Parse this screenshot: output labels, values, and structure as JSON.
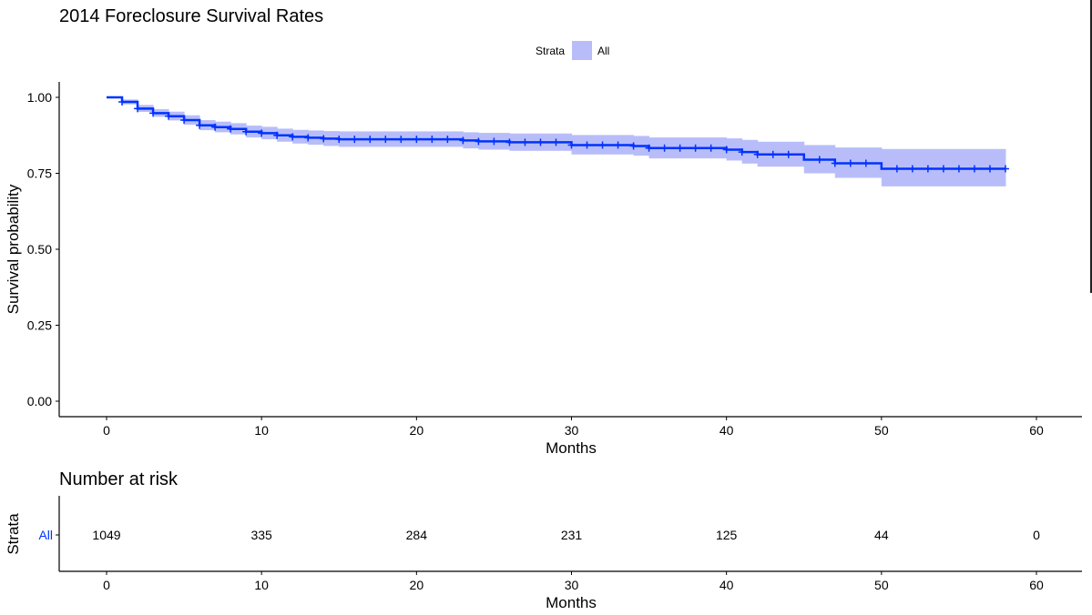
{
  "chart_data": [
    {
      "type": "line",
      "title": "2014 Foreclosure Survival Rates",
      "xlabel": "Months",
      "ylabel": "Survival probability",
      "xlim": [
        0,
        60
      ],
      "ylim": [
        0,
        1
      ],
      "x_ticks": [
        "0",
        "10",
        "20",
        "30",
        "40",
        "50",
        "60"
      ],
      "y_ticks": [
        "0.00",
        "0.25",
        "0.50",
        "0.75",
        "1.00"
      ],
      "grid": false,
      "legend": {
        "title": "Strata",
        "position": "top",
        "entries": [
          "All"
        ]
      },
      "series": [
        {
          "name": "All",
          "color": "#0033ff",
          "ci_color": "#b8bdfa",
          "step_x": [
            0,
            1,
            2,
            3,
            4,
            5,
            6,
            7,
            8,
            9,
            10,
            11,
            12,
            13,
            14,
            15,
            23,
            24,
            26,
            30,
            34,
            35,
            40,
            41,
            42,
            45,
            47,
            50,
            58
          ],
          "survival": [
            1.0,
            0.985,
            0.963,
            0.948,
            0.938,
            0.925,
            0.908,
            0.902,
            0.896,
            0.887,
            0.882,
            0.875,
            0.87,
            0.867,
            0.864,
            0.862,
            0.858,
            0.855,
            0.852,
            0.843,
            0.84,
            0.833,
            0.828,
            0.82,
            0.812,
            0.795,
            0.783,
            0.765,
            0.765
          ],
          "ci_lower": [
            1.0,
            0.977,
            0.952,
            0.936,
            0.924,
            0.91,
            0.892,
            0.885,
            0.878,
            0.868,
            0.862,
            0.854,
            0.848,
            0.844,
            0.84,
            0.837,
            0.832,
            0.828,
            0.824,
            0.812,
            0.808,
            0.799,
            0.792,
            0.782,
            0.772,
            0.75,
            0.735,
            0.707,
            0.707
          ],
          "ci_upper": [
            1.0,
            0.993,
            0.975,
            0.961,
            0.953,
            0.941,
            0.925,
            0.92,
            0.915,
            0.907,
            0.903,
            0.897,
            0.893,
            0.891,
            0.889,
            0.888,
            0.885,
            0.883,
            0.881,
            0.876,
            0.873,
            0.868,
            0.865,
            0.86,
            0.854,
            0.843,
            0.835,
            0.83,
            0.83
          ],
          "censor_marks_x": [
            1,
            2,
            3,
            4,
            5,
            6,
            7,
            8,
            9,
            10,
            11,
            12,
            13,
            14,
            15,
            16,
            17,
            18,
            19,
            20,
            21,
            22,
            23,
            24,
            25,
            26,
            27,
            28,
            29,
            30,
            31,
            32,
            33,
            34,
            35,
            36,
            37,
            38,
            39,
            40,
            41,
            42,
            43,
            44,
            46,
            47,
            48,
            49,
            51,
            52,
            53,
            54,
            55,
            56,
            57,
            58
          ]
        }
      ]
    },
    {
      "type": "table",
      "title": "Number at risk",
      "xlabel": "Months",
      "ylabel": "Strata",
      "xlim": [
        0,
        60
      ],
      "x_ticks": [
        "0",
        "10",
        "20",
        "30",
        "40",
        "50",
        "60"
      ],
      "rows": [
        {
          "label": "All",
          "label_color": "#0033ff",
          "times": [
            0,
            10,
            20,
            30,
            40,
            50,
            60
          ],
          "values": [
            "1049",
            "335",
            "284",
            "231",
            "125",
            "44",
            "0"
          ]
        }
      ]
    }
  ]
}
